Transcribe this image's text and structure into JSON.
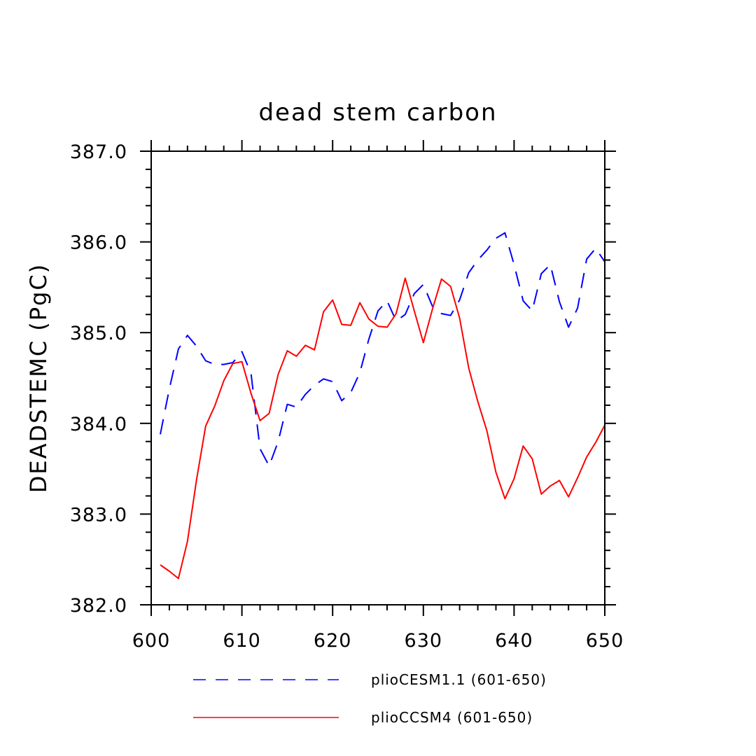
{
  "chart_data": {
    "type": "line",
    "title": "dead stem carbon",
    "xlabel": "",
    "ylabel": "DEADSTEMC  (PgC)",
    "xlim": [
      600,
      650
    ],
    "ylim": [
      382.0,
      387.0
    ],
    "xticks": [
      600,
      610,
      620,
      630,
      640,
      650
    ],
    "xtick_labels": [
      "600",
      "610",
      "620",
      "630",
      "640",
      "650"
    ],
    "yticks": [
      382.0,
      383.0,
      384.0,
      385.0,
      386.0,
      387.0
    ],
    "ytick_labels": [
      "382.0",
      "383.0",
      "384.0",
      "385.0",
      "386.0",
      "387.0"
    ],
    "x": [
      601,
      602,
      603,
      604,
      605,
      606,
      607,
      608,
      609,
      610,
      611,
      612,
      613,
      614,
      615,
      616,
      617,
      618,
      619,
      620,
      621,
      622,
      623,
      624,
      625,
      626,
      627,
      628,
      629,
      630,
      631,
      632,
      633,
      634,
      635,
      636,
      637,
      638,
      639,
      640,
      641,
      642,
      643,
      644,
      645,
      646,
      647,
      648,
      649,
      650
    ],
    "series": [
      {
        "name": "plioCESM1.1 (601-650)",
        "color": "#0000ff",
        "dash": "dashed",
        "values": [
          383.88,
          384.38,
          384.82,
          384.97,
          384.85,
          384.69,
          384.65,
          384.65,
          384.67,
          384.79,
          384.55,
          383.72,
          383.53,
          383.8,
          384.21,
          384.18,
          384.32,
          384.42,
          384.49,
          384.46,
          384.25,
          384.34,
          384.56,
          384.93,
          385.24,
          385.35,
          385.13,
          385.2,
          385.43,
          385.53,
          385.29,
          385.21,
          385.19,
          385.36,
          385.66,
          385.8,
          385.91,
          386.04,
          386.1,
          385.75,
          385.35,
          385.24,
          385.65,
          385.75,
          385.34,
          385.06,
          385.27,
          385.81,
          385.93,
          385.78
        ]
      },
      {
        "name": "plioCCSM4 (601-650)",
        "color": "#ff0000",
        "dash": "solid",
        "values": [
          382.44,
          382.37,
          382.29,
          382.7,
          383.38,
          383.97,
          384.19,
          384.47,
          384.66,
          384.68,
          384.33,
          384.03,
          384.11,
          384.54,
          384.8,
          384.74,
          384.86,
          384.81,
          385.23,
          385.36,
          385.09,
          385.08,
          385.33,
          385.15,
          385.07,
          385.06,
          385.21,
          385.6,
          385.24,
          384.89,
          385.26,
          385.59,
          385.51,
          385.16,
          384.61,
          384.24,
          383.92,
          383.46,
          383.17,
          383.39,
          383.75,
          383.61,
          383.22,
          383.31,
          383.37,
          383.19,
          383.4,
          383.63,
          383.79,
          383.98
        ]
      }
    ],
    "legend_position": "bottom",
    "grid": false
  }
}
